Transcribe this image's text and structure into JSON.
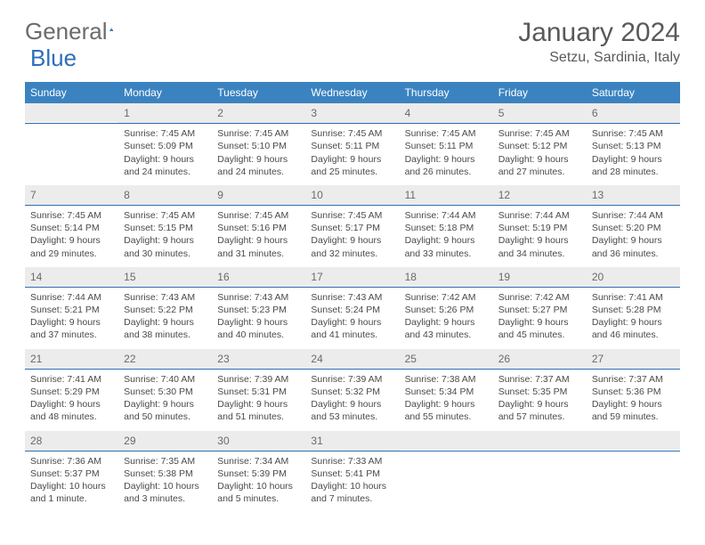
{
  "logo": {
    "text1": "General",
    "text2": "Blue"
  },
  "title": "January 2024",
  "location": "Setzu, Sardinia, Italy",
  "colors": {
    "header_bg": "#3b83c0",
    "header_text": "#ffffff",
    "divider": "#2d6fb8",
    "daynum_bg": "#ececec",
    "text": "#4a4a4a",
    "logo_accent": "#2d6fb8"
  },
  "day_headers": [
    "Sunday",
    "Monday",
    "Tuesday",
    "Wednesday",
    "Thursday",
    "Friday",
    "Saturday"
  ],
  "weeks": [
    [
      null,
      {
        "n": "1",
        "sr": "Sunrise: 7:45 AM",
        "ss": "Sunset: 5:09 PM",
        "d1": "Daylight: 9 hours",
        "d2": "and 24 minutes."
      },
      {
        "n": "2",
        "sr": "Sunrise: 7:45 AM",
        "ss": "Sunset: 5:10 PM",
        "d1": "Daylight: 9 hours",
        "d2": "and 24 minutes."
      },
      {
        "n": "3",
        "sr": "Sunrise: 7:45 AM",
        "ss": "Sunset: 5:11 PM",
        "d1": "Daylight: 9 hours",
        "d2": "and 25 minutes."
      },
      {
        "n": "4",
        "sr": "Sunrise: 7:45 AM",
        "ss": "Sunset: 5:11 PM",
        "d1": "Daylight: 9 hours",
        "d2": "and 26 minutes."
      },
      {
        "n": "5",
        "sr": "Sunrise: 7:45 AM",
        "ss": "Sunset: 5:12 PM",
        "d1": "Daylight: 9 hours",
        "d2": "and 27 minutes."
      },
      {
        "n": "6",
        "sr": "Sunrise: 7:45 AM",
        "ss": "Sunset: 5:13 PM",
        "d1": "Daylight: 9 hours",
        "d2": "and 28 minutes."
      }
    ],
    [
      {
        "n": "7",
        "sr": "Sunrise: 7:45 AM",
        "ss": "Sunset: 5:14 PM",
        "d1": "Daylight: 9 hours",
        "d2": "and 29 minutes."
      },
      {
        "n": "8",
        "sr": "Sunrise: 7:45 AM",
        "ss": "Sunset: 5:15 PM",
        "d1": "Daylight: 9 hours",
        "d2": "and 30 minutes."
      },
      {
        "n": "9",
        "sr": "Sunrise: 7:45 AM",
        "ss": "Sunset: 5:16 PM",
        "d1": "Daylight: 9 hours",
        "d2": "and 31 minutes."
      },
      {
        "n": "10",
        "sr": "Sunrise: 7:45 AM",
        "ss": "Sunset: 5:17 PM",
        "d1": "Daylight: 9 hours",
        "d2": "and 32 minutes."
      },
      {
        "n": "11",
        "sr": "Sunrise: 7:44 AM",
        "ss": "Sunset: 5:18 PM",
        "d1": "Daylight: 9 hours",
        "d2": "and 33 minutes."
      },
      {
        "n": "12",
        "sr": "Sunrise: 7:44 AM",
        "ss": "Sunset: 5:19 PM",
        "d1": "Daylight: 9 hours",
        "d2": "and 34 minutes."
      },
      {
        "n": "13",
        "sr": "Sunrise: 7:44 AM",
        "ss": "Sunset: 5:20 PM",
        "d1": "Daylight: 9 hours",
        "d2": "and 36 minutes."
      }
    ],
    [
      {
        "n": "14",
        "sr": "Sunrise: 7:44 AM",
        "ss": "Sunset: 5:21 PM",
        "d1": "Daylight: 9 hours",
        "d2": "and 37 minutes."
      },
      {
        "n": "15",
        "sr": "Sunrise: 7:43 AM",
        "ss": "Sunset: 5:22 PM",
        "d1": "Daylight: 9 hours",
        "d2": "and 38 minutes."
      },
      {
        "n": "16",
        "sr": "Sunrise: 7:43 AM",
        "ss": "Sunset: 5:23 PM",
        "d1": "Daylight: 9 hours",
        "d2": "and 40 minutes."
      },
      {
        "n": "17",
        "sr": "Sunrise: 7:43 AM",
        "ss": "Sunset: 5:24 PM",
        "d1": "Daylight: 9 hours",
        "d2": "and 41 minutes."
      },
      {
        "n": "18",
        "sr": "Sunrise: 7:42 AM",
        "ss": "Sunset: 5:26 PM",
        "d1": "Daylight: 9 hours",
        "d2": "and 43 minutes."
      },
      {
        "n": "19",
        "sr": "Sunrise: 7:42 AM",
        "ss": "Sunset: 5:27 PM",
        "d1": "Daylight: 9 hours",
        "d2": "and 45 minutes."
      },
      {
        "n": "20",
        "sr": "Sunrise: 7:41 AM",
        "ss": "Sunset: 5:28 PM",
        "d1": "Daylight: 9 hours",
        "d2": "and 46 minutes."
      }
    ],
    [
      {
        "n": "21",
        "sr": "Sunrise: 7:41 AM",
        "ss": "Sunset: 5:29 PM",
        "d1": "Daylight: 9 hours",
        "d2": "and 48 minutes."
      },
      {
        "n": "22",
        "sr": "Sunrise: 7:40 AM",
        "ss": "Sunset: 5:30 PM",
        "d1": "Daylight: 9 hours",
        "d2": "and 50 minutes."
      },
      {
        "n": "23",
        "sr": "Sunrise: 7:39 AM",
        "ss": "Sunset: 5:31 PM",
        "d1": "Daylight: 9 hours",
        "d2": "and 51 minutes."
      },
      {
        "n": "24",
        "sr": "Sunrise: 7:39 AM",
        "ss": "Sunset: 5:32 PM",
        "d1": "Daylight: 9 hours",
        "d2": "and 53 minutes."
      },
      {
        "n": "25",
        "sr": "Sunrise: 7:38 AM",
        "ss": "Sunset: 5:34 PM",
        "d1": "Daylight: 9 hours",
        "d2": "and 55 minutes."
      },
      {
        "n": "26",
        "sr": "Sunrise: 7:37 AM",
        "ss": "Sunset: 5:35 PM",
        "d1": "Daylight: 9 hours",
        "d2": "and 57 minutes."
      },
      {
        "n": "27",
        "sr": "Sunrise: 7:37 AM",
        "ss": "Sunset: 5:36 PM",
        "d1": "Daylight: 9 hours",
        "d2": "and 59 minutes."
      }
    ],
    [
      {
        "n": "28",
        "sr": "Sunrise: 7:36 AM",
        "ss": "Sunset: 5:37 PM",
        "d1": "Daylight: 10 hours",
        "d2": "and 1 minute."
      },
      {
        "n": "29",
        "sr": "Sunrise: 7:35 AM",
        "ss": "Sunset: 5:38 PM",
        "d1": "Daylight: 10 hours",
        "d2": "and 3 minutes."
      },
      {
        "n": "30",
        "sr": "Sunrise: 7:34 AM",
        "ss": "Sunset: 5:39 PM",
        "d1": "Daylight: 10 hours",
        "d2": "and 5 minutes."
      },
      {
        "n": "31",
        "sr": "Sunrise: 7:33 AM",
        "ss": "Sunset: 5:41 PM",
        "d1": "Daylight: 10 hours",
        "d2": "and 7 minutes."
      },
      null,
      null,
      null
    ]
  ]
}
